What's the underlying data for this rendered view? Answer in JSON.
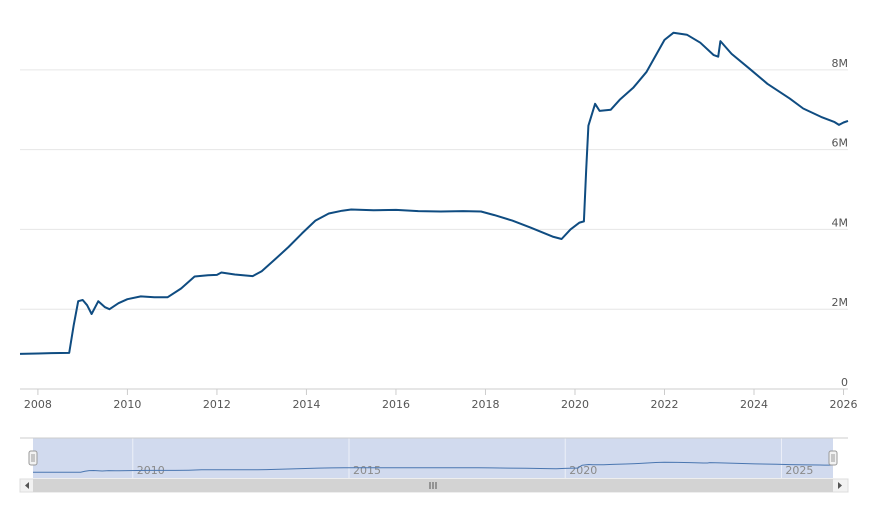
{
  "colors": {
    "line": "#0f4c81",
    "navigator_fill": "#c5d1ea",
    "navigator_line": "#4a76b0",
    "grid": "#e6e6e6",
    "scrollbar": "#d3d3d3"
  },
  "chart_data": {
    "type": "line",
    "x_unit": "year",
    "xlim": [
      2007.6,
      2026.1
    ],
    "ylim": [
      0,
      9400000
    ],
    "grid": true,
    "y_axis_position": "right",
    "y_ticks": [
      {
        "value": 0,
        "label": "0"
      },
      {
        "value": 2000000,
        "label": "2M"
      },
      {
        "value": 4000000,
        "label": "4M"
      },
      {
        "value": 6000000,
        "label": "6M"
      },
      {
        "value": 8000000,
        "label": "8M"
      }
    ],
    "x_ticks": [
      {
        "value": 2008,
        "label": "2008"
      },
      {
        "value": 2010,
        "label": "2010"
      },
      {
        "value": 2012,
        "label": "2012"
      },
      {
        "value": 2014,
        "label": "2014"
      },
      {
        "value": 2016,
        "label": "2016"
      },
      {
        "value": 2018,
        "label": "2018"
      },
      {
        "value": 2020,
        "label": "2020"
      },
      {
        "value": 2022,
        "label": "2022"
      },
      {
        "value": 2024,
        "label": "2024"
      },
      {
        "value": 2026,
        "label": "2026"
      }
    ],
    "series": [
      {
        "values": [
          [
            2007.6,
            880000
          ],
          [
            2008.0,
            890000
          ],
          [
            2008.3,
            900000
          ],
          [
            2008.7,
            905000
          ],
          [
            2008.8,
            1600000
          ],
          [
            2008.9,
            2200000
          ],
          [
            2009.0,
            2230000
          ],
          [
            2009.1,
            2100000
          ],
          [
            2009.2,
            1880000
          ],
          [
            2009.35,
            2200000
          ],
          [
            2009.5,
            2050000
          ],
          [
            2009.6,
            2000000
          ],
          [
            2009.8,
            2150000
          ],
          [
            2010.0,
            2250000
          ],
          [
            2010.3,
            2320000
          ],
          [
            2010.6,
            2300000
          ],
          [
            2010.9,
            2300000
          ],
          [
            2011.2,
            2520000
          ],
          [
            2011.5,
            2820000
          ],
          [
            2011.8,
            2850000
          ],
          [
            2012.0,
            2860000
          ],
          [
            2012.1,
            2920000
          ],
          [
            2012.4,
            2870000
          ],
          [
            2012.8,
            2830000
          ],
          [
            2013.0,
            2950000
          ],
          [
            2013.3,
            3250000
          ],
          [
            2013.6,
            3560000
          ],
          [
            2013.9,
            3900000
          ],
          [
            2014.2,
            4220000
          ],
          [
            2014.5,
            4400000
          ],
          [
            2014.8,
            4470000
          ],
          [
            2015.0,
            4500000
          ],
          [
            2015.5,
            4480000
          ],
          [
            2016.0,
            4490000
          ],
          [
            2016.5,
            4460000
          ],
          [
            2017.0,
            4450000
          ],
          [
            2017.5,
            4460000
          ],
          [
            2017.9,
            4450000
          ],
          [
            2018.2,
            4360000
          ],
          [
            2018.6,
            4220000
          ],
          [
            2019.0,
            4050000
          ],
          [
            2019.5,
            3820000
          ],
          [
            2019.7,
            3760000
          ],
          [
            2019.9,
            4000000
          ],
          [
            2020.1,
            4170000
          ],
          [
            2020.2,
            4200000
          ],
          [
            2020.25,
            5500000
          ],
          [
            2020.3,
            6600000
          ],
          [
            2020.45,
            7150000
          ],
          [
            2020.55,
            6970000
          ],
          [
            2020.8,
            7000000
          ],
          [
            2021.0,
            7250000
          ],
          [
            2021.3,
            7550000
          ],
          [
            2021.6,
            7950000
          ],
          [
            2022.0,
            8750000
          ],
          [
            2022.2,
            8930000
          ],
          [
            2022.5,
            8880000
          ],
          [
            2022.8,
            8680000
          ],
          [
            2023.1,
            8370000
          ],
          [
            2023.2,
            8330000
          ],
          [
            2023.25,
            8720000
          ],
          [
            2023.5,
            8400000
          ],
          [
            2023.9,
            8030000
          ],
          [
            2024.3,
            7650000
          ],
          [
            2024.8,
            7280000
          ],
          [
            2025.1,
            7030000
          ],
          [
            2025.5,
            6820000
          ],
          [
            2025.8,
            6690000
          ],
          [
            2025.9,
            6620000
          ],
          [
            2026.0,
            6680000
          ],
          [
            2026.1,
            6720000
          ]
        ]
      }
    ],
    "navigator": {
      "x_ticks": [
        {
          "value": 2010,
          "label": "2010"
        },
        {
          "value": 2015,
          "label": "2015"
        },
        {
          "value": 2020,
          "label": "2020"
        },
        {
          "value": 2025,
          "label": "2025"
        }
      ]
    }
  }
}
